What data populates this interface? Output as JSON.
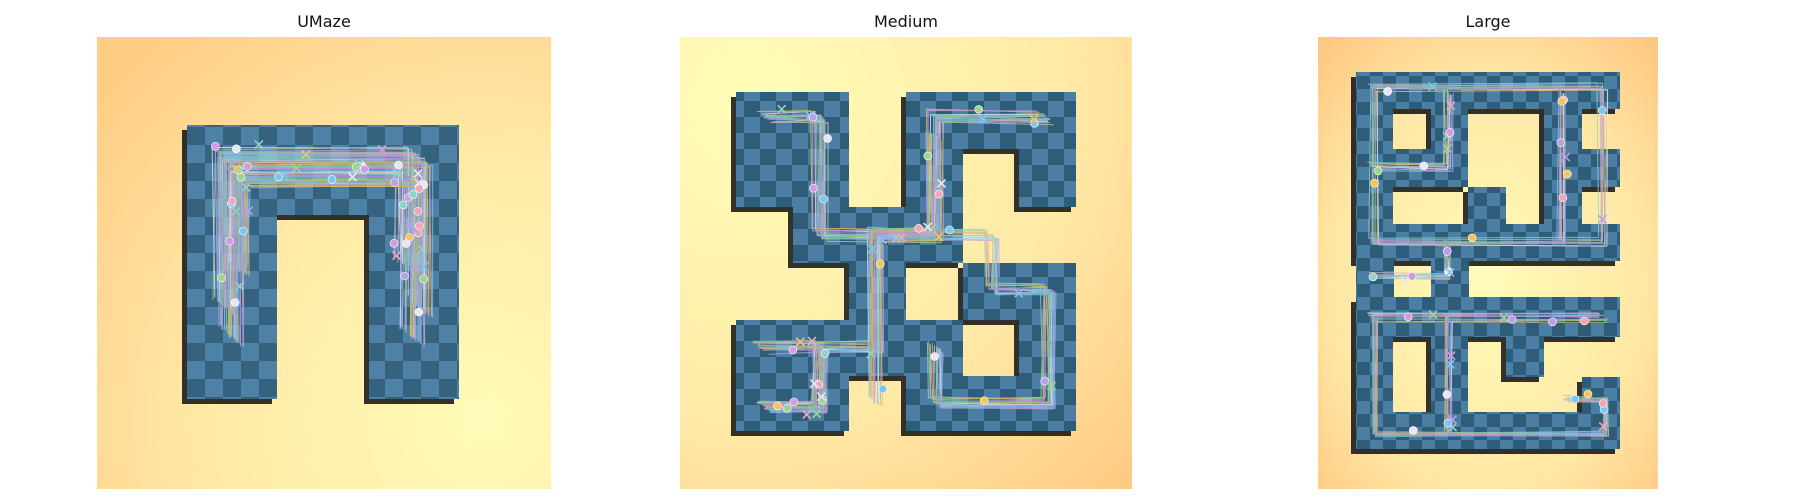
{
  "figure": {
    "panels": [
      {
        "title": "UMaze"
      },
      {
        "title": "Medium"
      },
      {
        "title": "Large"
      }
    ]
  },
  "colors": {
    "floor_light": "#fff6b8",
    "floor_dark": "#ffc982",
    "corridor_dark": "#2f5c78",
    "corridor_light": "#4a7fa3",
    "wall_shadow": "#1c1c1c",
    "start_marker_palette": [
      "#d49be0",
      "#9ed68f",
      "#7cc6f2",
      "#f2a7b8",
      "#f5c55a",
      "#b9a0e8",
      "#e6e6f5",
      "#8fd5c6"
    ]
  }
}
